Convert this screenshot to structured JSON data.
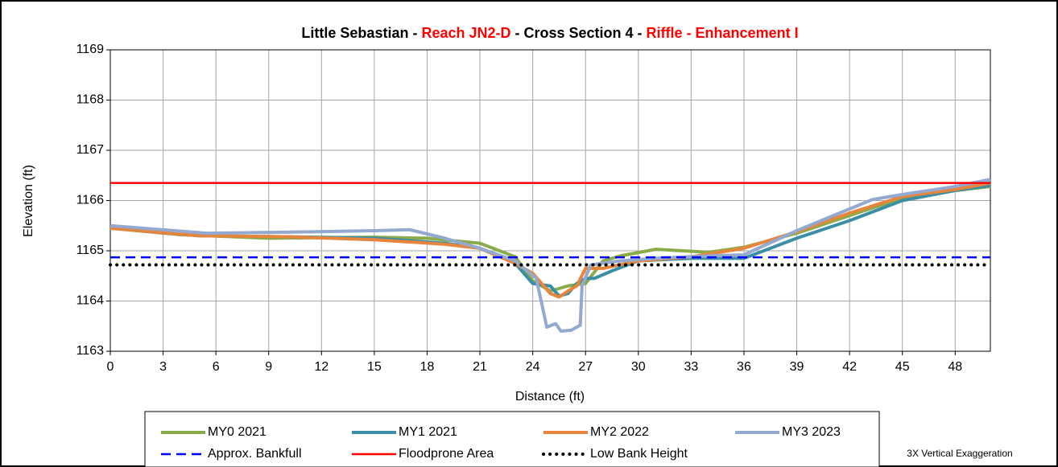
{
  "chart_data": {
    "type": "line",
    "title_parts": [
      {
        "text": "Little Sebastian - ",
        "color": "#000000"
      },
      {
        "text": "Reach JN2-D",
        "color": "#ff0000"
      },
      {
        "text": " - Cross Section 4 - ",
        "color": "#000000"
      },
      {
        "text": "Riffle - Enhancement I",
        "color": "#ff0000"
      }
    ],
    "x_label": "Distance (ft)",
    "y_label": "Elevation (ft)",
    "note": "3X Vertical Exaggeration",
    "xlim": [
      0,
      50
    ],
    "xticks": [
      0,
      3,
      6,
      9,
      12,
      15,
      18,
      21,
      24,
      27,
      30,
      33,
      36,
      39,
      42,
      45,
      48
    ],
    "ylim": [
      1163,
      1169
    ],
    "yticks": [
      1163,
      1164,
      1165,
      1166,
      1167,
      1168,
      1169
    ],
    "grid": true,
    "legend": "bottom",
    "series": [
      {
        "name": "MY0 2021",
        "color": "#8aab4a",
        "style": "solid",
        "x": [
          0,
          4,
          9,
          15,
          18,
          21,
          23,
          24,
          25,
          26,
          27,
          28,
          29,
          31,
          34,
          36,
          39,
          42,
          45,
          48,
          50
        ],
        "values": [
          1165.45,
          1165.32,
          1165.25,
          1165.27,
          1165.25,
          1165.15,
          1164.88,
          1164.4,
          1164.2,
          1164.3,
          1164.35,
          1164.8,
          1164.9,
          1165.03,
          1164.97,
          1165.07,
          1165.35,
          1165.7,
          1166.05,
          1166.2,
          1166.28
        ]
      },
      {
        "name": "MY1 2021",
        "color": "#3a8fa6",
        "style": "solid",
        "x": [
          0,
          5,
          10,
          15,
          19,
          21,
          23,
          24,
          25,
          25.5,
          26,
          26.5,
          27,
          27.5,
          28.5,
          30,
          33,
          36,
          39,
          42,
          45,
          48,
          50
        ],
        "values": [
          1165.45,
          1165.3,
          1165.28,
          1165.25,
          1165.15,
          1165.05,
          1164.75,
          1164.35,
          1164.3,
          1164.1,
          1164.15,
          1164.35,
          1164.45,
          1164.45,
          1164.6,
          1164.8,
          1164.85,
          1164.85,
          1165.25,
          1165.6,
          1166.0,
          1166.2,
          1166.3
        ]
      },
      {
        "name": "MY2 2022",
        "color": "#e8853d",
        "style": "solid",
        "x": [
          0,
          5,
          10,
          15,
          19,
          21,
          23,
          24,
          25,
          25.5,
          26,
          26.5,
          27,
          28,
          30,
          33,
          36,
          39,
          42,
          45,
          48,
          50
        ],
        "values": [
          1165.45,
          1165.3,
          1165.28,
          1165.22,
          1165.13,
          1165.05,
          1164.75,
          1164.55,
          1164.15,
          1164.08,
          1164.2,
          1164.3,
          1164.65,
          1164.65,
          1164.8,
          1164.88,
          1165.05,
          1165.38,
          1165.75,
          1166.08,
          1166.22,
          1166.35
        ]
      },
      {
        "name": "MY3 2023",
        "color": "#93a9cf",
        "style": "solid",
        "x": [
          0,
          5.5,
          10,
          15,
          17,
          19,
          21,
          23,
          24.2,
          24.8,
          25.3,
          25.6,
          26.2,
          26.7,
          26.8,
          27.3,
          29,
          31,
          34,
          36,
          39,
          43.3,
          45,
          48,
          50
        ],
        "values": [
          1165.5,
          1165.35,
          1165.37,
          1165.4,
          1165.42,
          1165.25,
          1165.05,
          1164.8,
          1164.45,
          1163.48,
          1163.55,
          1163.4,
          1163.42,
          1163.52,
          1164.3,
          1164.72,
          1164.8,
          1164.85,
          1164.9,
          1164.92,
          1165.4,
          1166.02,
          1166.12,
          1166.28,
          1166.42
        ]
      },
      {
        "name": "Approx. Bankfull",
        "color": "#0000ff",
        "style": "dashed",
        "x": [
          0,
          50
        ],
        "values": [
          1164.87,
          1164.87
        ]
      },
      {
        "name": "Floodprone Area",
        "color": "#ff0000",
        "style": "solid",
        "x": [
          0,
          50
        ],
        "values": [
          1166.35,
          1166.35
        ]
      },
      {
        "name": "Low Bank Height",
        "color": "#000000",
        "style": "dotted",
        "x": [
          0,
          50
        ],
        "values": [
          1164.72,
          1164.72
        ]
      }
    ]
  }
}
